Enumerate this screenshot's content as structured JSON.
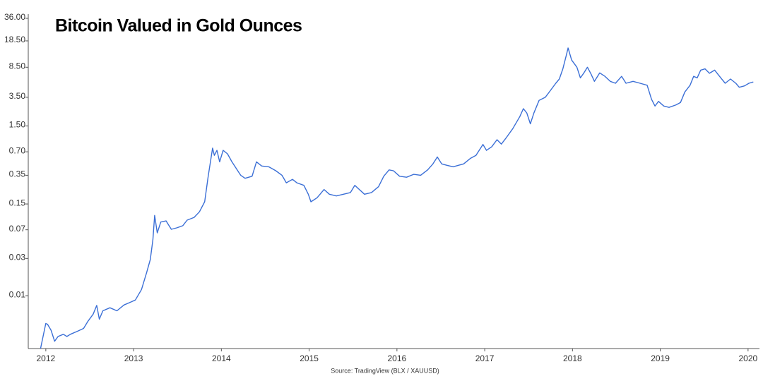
{
  "chart_data": {
    "type": "line",
    "title": "Bitcoin Valued in Gold Ounces",
    "source": "Source: TradingView (BLX / XAUUSD)",
    "log_scale": true,
    "color": "#3b6fd6",
    "xlim": [
      2011.8,
      2020.13
    ],
    "xticks": [
      2012,
      2013,
      2014,
      2015,
      2016,
      2017,
      2018,
      2019,
      2020
    ],
    "ylim": [
      0.0021,
      36
    ],
    "yticks": [
      {
        "value": 36,
        "label": "36.00"
      },
      {
        "value": 18.5,
        "label": "18.50"
      },
      {
        "value": 8.5,
        "label": "8.50"
      },
      {
        "value": 3.5,
        "label": "3.50"
      },
      {
        "value": 1.5,
        "label": "1.50"
      },
      {
        "value": 0.7,
        "label": "0.70"
      },
      0.35,
      0.15,
      0.07,
      0.03,
      0.01
    ],
    "x": [
      2011.94,
      2012.0,
      2012.02,
      2012.06,
      2012.1,
      2012.14,
      2012.2,
      2012.24,
      2012.28,
      2012.36,
      2012.43,
      2012.48,
      2012.54,
      2012.58,
      2012.61,
      2012.65,
      2012.73,
      2012.81,
      2012.89,
      2012.97,
      2013.02,
      2013.09,
      2013.15,
      2013.19,
      2013.22,
      2013.24,
      2013.27,
      2013.31,
      2013.37,
      2013.43,
      2013.49,
      2013.56,
      2013.61,
      2013.69,
      2013.75,
      2013.81,
      2013.85,
      2013.9,
      2013.92,
      2013.95,
      2013.98,
      2014.02,
      2014.07,
      2014.12,
      2014.18,
      2014.22,
      2014.27,
      2014.35,
      2014.4,
      2014.46,
      2014.54,
      2014.62,
      2014.69,
      2014.74,
      2014.81,
      2014.86,
      2014.94,
      2014.99,
      2015.02,
      2015.09,
      2015.17,
      2015.23,
      2015.31,
      2015.39,
      2015.47,
      2015.52,
      2015.59,
      2015.63,
      2015.71,
      2015.79,
      2015.85,
      2015.91,
      2015.96,
      2016.03,
      2016.11,
      2016.19,
      2016.27,
      2016.35,
      2016.41,
      2016.46,
      2016.51,
      2016.57,
      2016.64,
      2016.7,
      2016.76,
      2016.84,
      2016.9,
      2016.98,
      2017.02,
      2017.08,
      2017.14,
      2017.19,
      2017.24,
      2017.32,
      2017.4,
      2017.44,
      2017.48,
      2017.52,
      2017.56,
      2017.62,
      2017.69,
      2017.75,
      2017.81,
      2017.85,
      2017.89,
      2017.93,
      2017.95,
      2017.99,
      2018.05,
      2018.09,
      2018.13,
      2018.17,
      2018.21,
      2018.25,
      2018.31,
      2018.37,
      2018.43,
      2018.49,
      2018.56,
      2018.61,
      2018.69,
      2018.77,
      2018.85,
      2018.9,
      2018.94,
      2018.98,
      2019.04,
      2019.1,
      2019.18,
      2019.23,
      2019.28,
      2019.34,
      2019.38,
      2019.42,
      2019.46,
      2019.51,
      2019.56,
      2019.62,
      2019.69,
      2019.74,
      2019.8,
      2019.86,
      2019.9,
      2019.96,
      2020.01,
      2020.06
    ],
    "values": [
      0.0021,
      0.0044,
      0.0043,
      0.0036,
      0.0026,
      0.003,
      0.0032,
      0.003,
      0.0032,
      0.0035,
      0.0038,
      0.0047,
      0.0058,
      0.0075,
      0.005,
      0.0064,
      0.007,
      0.0064,
      0.0076,
      0.0083,
      0.0088,
      0.012,
      0.02,
      0.029,
      0.052,
      0.107,
      0.064,
      0.088,
      0.091,
      0.071,
      0.074,
      0.079,
      0.093,
      0.101,
      0.119,
      0.16,
      0.34,
      0.78,
      0.63,
      0.73,
      0.52,
      0.73,
      0.66,
      0.52,
      0.41,
      0.35,
      0.32,
      0.34,
      0.52,
      0.46,
      0.45,
      0.4,
      0.35,
      0.28,
      0.31,
      0.28,
      0.26,
      0.2,
      0.16,
      0.18,
      0.23,
      0.2,
      0.19,
      0.2,
      0.21,
      0.26,
      0.22,
      0.2,
      0.21,
      0.25,
      0.34,
      0.41,
      0.4,
      0.34,
      0.33,
      0.36,
      0.35,
      0.41,
      0.49,
      0.6,
      0.49,
      0.47,
      0.45,
      0.47,
      0.49,
      0.58,
      0.63,
      0.87,
      0.73,
      0.81,
      1.0,
      0.88,
      1.04,
      1.39,
      1.98,
      2.5,
      2.2,
      1.6,
      2.2,
      3.2,
      3.5,
      4.3,
      5.3,
      6.0,
      8.1,
      12.2,
      15.0,
      10.5,
      8.5,
      6.2,
      7.2,
      8.5,
      7.0,
      5.6,
      7.2,
      6.5,
      5.6,
      5.3,
      6.5,
      5.3,
      5.6,
      5.3,
      5.0,
      3.3,
      2.7,
      3.1,
      2.7,
      2.6,
      2.8,
      3.0,
      4.1,
      5.0,
      6.5,
      6.2,
      7.8,
      8.1,
      7.1,
      7.8,
      6.2,
      5.3,
      6.0,
      5.3,
      4.7,
      4.9,
      5.3,
      5.5
    ]
  }
}
